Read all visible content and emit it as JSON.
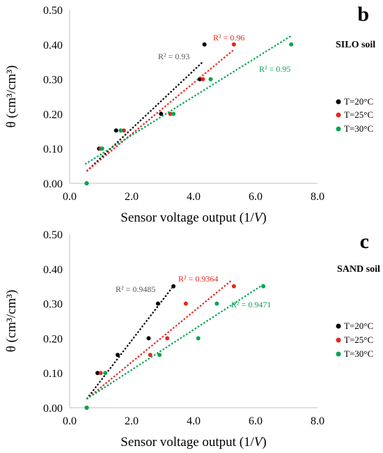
{
  "chart_data": [
    {
      "type": "scatter",
      "panel_label": "b",
      "soil_label": "SILO soil",
      "xlabel": "Sensor voltage output (1/",
      "xlabel_var": "V",
      "xlabel_close": ")",
      "ylabel": "θ (cm³/cm³)",
      "xlim": [
        0,
        8
      ],
      "ylim": [
        0,
        0.5
      ],
      "xticks": [
        "0.0",
        "2.0",
        "4.0",
        "6.0",
        "8.0"
      ],
      "yticks": [
        "0.00",
        "0.10",
        "0.20",
        "0.30",
        "0.40",
        "0.50"
      ],
      "grid": false,
      "legend_position": "right",
      "series": [
        {
          "name": "T=20°C",
          "color": "#000000",
          "points": [
            [
              0.55,
              0.0
            ],
            [
              0.95,
              0.1
            ],
            [
              1.5,
              0.152
            ],
            [
              2.95,
              0.2
            ],
            [
              4.2,
              0.3
            ],
            [
              4.35,
              0.4
            ]
          ],
          "trend": [
            [
              0.55,
              0.035
            ],
            [
              4.3,
              0.35
            ]
          ],
          "r2_label": "R² = 0.93"
        },
        {
          "name": "T=25°C",
          "color": "#e8251c",
          "points": [
            [
              0.55,
              0.0
            ],
            [
              1.0,
              0.1
            ],
            [
              1.75,
              0.152
            ],
            [
              3.25,
              0.2
            ],
            [
              4.3,
              0.3
            ],
            [
              5.3,
              0.4
            ]
          ],
          "trend": [
            [
              0.55,
              0.035
            ],
            [
              5.3,
              0.385
            ]
          ],
          "r2_label": "R² = 0.96"
        },
        {
          "name": "T=30°C",
          "color": "#00a651",
          "points": [
            [
              0.55,
              0.0
            ],
            [
              1.05,
              0.1
            ],
            [
              1.65,
              0.152
            ],
            [
              3.35,
              0.2
            ],
            [
              4.55,
              0.3
            ],
            [
              7.15,
              0.4
            ]
          ],
          "trend": [
            [
              0.5,
              0.055
            ],
            [
              7.15,
              0.425
            ]
          ],
          "r2_label": "R² = 0.95"
        }
      ]
    },
    {
      "type": "scatter",
      "panel_label": "c",
      "soil_label": "SAND soil",
      "xlabel": "Sensor voltage output (1/",
      "xlabel_var": "V",
      "xlabel_close": ")",
      "ylabel": "θ (cm³/cm³)",
      "xlim": [
        0,
        8
      ],
      "ylim": [
        0,
        0.5
      ],
      "xticks": [
        "0.0",
        "2.0",
        "4.0",
        "6.0",
        "8.0"
      ],
      "yticks": [
        "0.00",
        "0.10",
        "0.20",
        "0.30",
        "0.40",
        "0.50"
      ],
      "grid": false,
      "legend_position": "right",
      "series": [
        {
          "name": "T=20°C",
          "color": "#000000",
          "points": [
            [
              0.55,
              0.0
            ],
            [
              0.9,
              0.1
            ],
            [
              1.55,
              0.152
            ],
            [
              2.55,
              0.2
            ],
            [
              2.85,
              0.3
            ],
            [
              3.35,
              0.35
            ]
          ],
          "trend": [
            [
              0.55,
              0.025
            ],
            [
              3.3,
              0.345
            ]
          ],
          "r2_label": "R² = 0.9485"
        },
        {
          "name": "T=25°C",
          "color": "#e8251c",
          "points": [
            [
              0.55,
              0.0
            ],
            [
              1.0,
              0.1
            ],
            [
              2.6,
              0.152
            ],
            [
              3.15,
              0.2
            ],
            [
              3.75,
              0.3
            ],
            [
              5.3,
              0.35
            ]
          ],
          "trend": [
            [
              0.55,
              0.025
            ],
            [
              5.2,
              0.365
            ]
          ],
          "r2_label": "R² = 0.9364"
        },
        {
          "name": "T=30°C",
          "color": "#00a651",
          "points": [
            [
              0.55,
              0.0
            ],
            [
              1.15,
              0.1
            ],
            [
              2.9,
              0.152
            ],
            [
              4.15,
              0.2
            ],
            [
              4.75,
              0.3
            ],
            [
              6.25,
              0.35
            ]
          ],
          "trend": [
            [
              0.55,
              0.025
            ],
            [
              6.25,
              0.355
            ]
          ],
          "r2_label": "R² = 0.9471"
        }
      ]
    }
  ]
}
